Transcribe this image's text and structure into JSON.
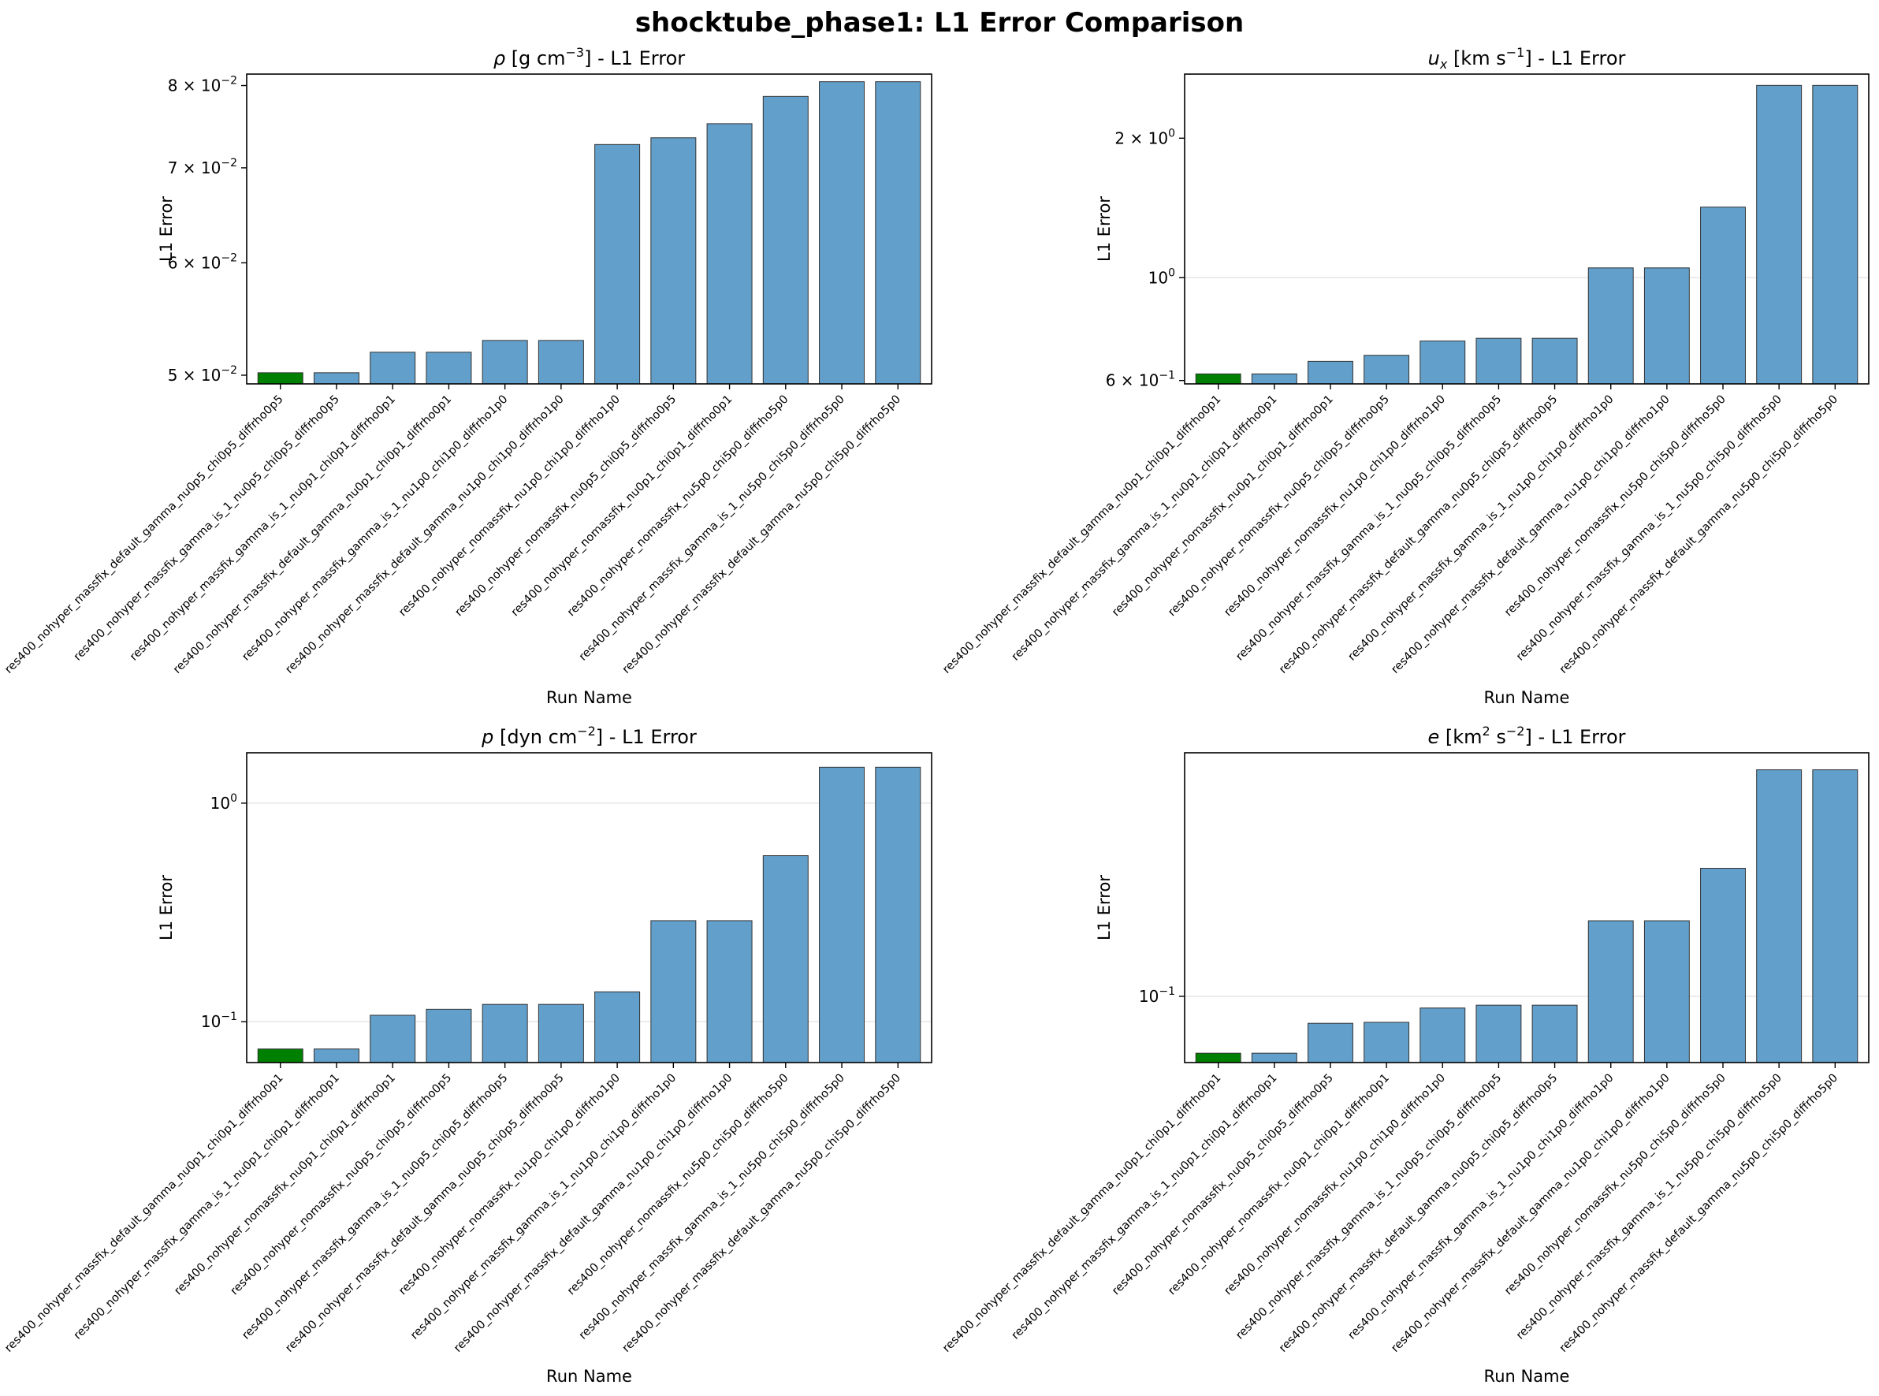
{
  "figure": {
    "title": "shocktube_phase1: L1 Error Comparison"
  },
  "colors": {
    "best": "#008000",
    "bar": "#629fca",
    "edge": "#333333",
    "grid": "#e6e6e6"
  },
  "chart_data": [
    {
      "type": "bar",
      "title_parts": [
        "ρ",
        " [g cm",
        "−3",
        "] - L1 Error"
      ],
      "xlabel": "Run Name",
      "ylabel": "L1 Error",
      "yscale": "log",
      "ylim": [
        0.0493,
        0.0815
      ],
      "yticks": [
        {
          "value": 0.05,
          "mantissa": "5",
          "exp": "−2"
        },
        {
          "value": 0.06,
          "mantissa": "6",
          "exp": "−2"
        },
        {
          "value": 0.07,
          "mantissa": "7",
          "exp": "−2"
        },
        {
          "value": 0.08,
          "mantissa": "8",
          "exp": "−2"
        }
      ],
      "grid_lines": [],
      "highlight_index": 0,
      "categories": [
        "res400_nohyper_massfix_default_gamma_nu0p5_chi0p5_diffrho0p5",
        "res400_nohyper_massfix_gamma_is_1_nu0p5_chi0p5_diffrho0p5",
        "res400_nohyper_massfix_gamma_is_1_nu0p1_chi0p1_diffrho0p1",
        "res400_nohyper_massfix_default_gamma_nu0p1_chi0p1_diffrho0p1",
        "res400_nohyper_massfix_gamma_is_1_nu1p0_chi1p0_diffrho1p0",
        "res400_nohyper_massfix_default_gamma_nu1p0_chi1p0_diffrho1p0",
        "res400_nohyper_nomassfix_nu1p0_chi1p0_diffrho1p0",
        "res400_nohyper_nomassfix_nu0p5_chi0p5_diffrho0p5",
        "res400_nohyper_nomassfix_nu0p1_chi0p1_diffrho0p1",
        "res400_nohyper_nomassfix_nu5p0_chi5p0_diffrho5p0",
        "res400_nohyper_massfix_gamma_is_1_nu5p0_chi5p0_diffrho5p0",
        "res400_nohyper_massfix_default_gamma_nu5p0_chi5p0_diffrho5p0"
      ],
      "values": [
        0.0502,
        0.0502,
        0.0519,
        0.0519,
        0.0529,
        0.0529,
        0.0727,
        0.0735,
        0.0752,
        0.0786,
        0.0805,
        0.0805
      ]
    },
    {
      "type": "bar",
      "title_parts": [
        "u",
        "x",
        " [km s",
        "−1",
        "] - L1 Error"
      ],
      "xlabel": "Run Name",
      "ylabel": "L1 Error",
      "yscale": "log",
      "ylim": [
        0.59,
        2.75
      ],
      "yticks": [
        {
          "value": 0.6,
          "mantissa": "6",
          "exp": "−1"
        },
        {
          "value": 1.0,
          "mantissa": "",
          "exp": "0"
        },
        {
          "value": 2.0,
          "mantissa": "2",
          "exp": "0"
        }
      ],
      "grid_lines": [
        1.0
      ],
      "highlight_index": 0,
      "categories": [
        "res400_nohyper_massfix_default_gamma_nu0p1_chi0p1_diffrho0p1",
        "res400_nohyper_massfix_gamma_is_1_nu0p1_chi0p1_diffrho0p1",
        "res400_nohyper_nomassfix_nu0p1_chi0p1_diffrho0p1",
        "res400_nohyper_nomassfix_nu0p5_chi0p5_diffrho0p5",
        "res400_nohyper_nomassfix_nu1p0_chi1p0_diffrho1p0",
        "res400_nohyper_massfix_gamma_is_1_nu0p5_chi0p5_diffrho0p5",
        "res400_nohyper_massfix_default_gamma_nu0p5_chi0p5_diffrho0p5",
        "res400_nohyper_massfix_gamma_is_1_nu1p0_chi1p0_diffrho1p0",
        "res400_nohyper_massfix_default_gamma_nu1p0_chi1p0_diffrho1p0",
        "res400_nohyper_nomassfix_nu5p0_chi5p0_diffrho5p0",
        "res400_nohyper_massfix_gamma_is_1_nu5p0_chi5p0_diffrho5p0",
        "res400_nohyper_massfix_default_gamma_nu5p0_chi5p0_diffrho5p0"
      ],
      "values": [
        0.62,
        0.62,
        0.66,
        0.68,
        0.73,
        0.74,
        0.74,
        1.05,
        1.05,
        1.42,
        2.6,
        2.6
      ]
    },
    {
      "type": "bar",
      "title_parts": [
        "p",
        " [dyn cm",
        "−2",
        "] - L1 Error"
      ],
      "xlabel": "Run Name",
      "ylabel": "L1 Error",
      "yscale": "log",
      "ylim": [
        0.065,
        1.7
      ],
      "yticks": [
        {
          "value": 0.1,
          "mantissa": "",
          "exp": "−1"
        },
        {
          "value": 1.0,
          "mantissa": "",
          "exp": "0"
        }
      ],
      "grid_lines": [
        0.1,
        1.0
      ],
      "highlight_index": 0,
      "categories": [
        "res400_nohyper_massfix_default_gamma_nu0p1_chi0p1_diffrho0p1",
        "res400_nohyper_massfix_gamma_is_1_nu0p1_chi0p1_diffrho0p1",
        "res400_nohyper_nomassfix_nu0p1_chi0p1_diffrho0p1",
        "res400_nohyper_nomassfix_nu0p5_chi0p5_diffrho0p5",
        "res400_nohyper_massfix_gamma_is_1_nu0p5_chi0p5_diffrho0p5",
        "res400_nohyper_massfix_default_gamma_nu0p5_chi0p5_diffrho0p5",
        "res400_nohyper_nomassfix_nu1p0_chi1p0_diffrho1p0",
        "res400_nohyper_massfix_gamma_is_1_nu1p0_chi1p0_diffrho1p0",
        "res400_nohyper_massfix_default_gamma_nu1p0_chi1p0_diffrho1p0",
        "res400_nohyper_nomassfix_nu5p0_chi5p0_diffrho5p0",
        "res400_nohyper_massfix_gamma_is_1_nu5p0_chi5p0_diffrho5p0",
        "res400_nohyper_massfix_default_gamma_nu5p0_chi5p0_diffrho5p0"
      ],
      "values": [
        0.075,
        0.075,
        0.107,
        0.114,
        0.12,
        0.12,
        0.137,
        0.29,
        0.29,
        0.575,
        1.46,
        1.46
      ]
    },
    {
      "type": "bar",
      "title_parts": [
        "e",
        " [km",
        "2",
        " s",
        "−2",
        "] - L1 Error"
      ],
      "xlabel": "Run Name",
      "ylabel": "L1 Error",
      "yscale": "log",
      "ylim": [
        0.0557,
        0.86
      ],
      "yticks": [
        {
          "value": 0.1,
          "mantissa": "",
          "exp": "−1"
        }
      ],
      "grid_lines": [
        0.1
      ],
      "highlight_index": 0,
      "categories": [
        "res400_nohyper_massfix_default_gamma_nu0p1_chi0p1_diffrho0p1",
        "res400_nohyper_massfix_gamma_is_1_nu0p1_chi0p1_diffrho0p1",
        "res400_nohyper_nomassfix_nu0p5_chi0p5_diffrho0p5",
        "res400_nohyper_nomassfix_nu0p1_chi0p1_diffrho0p1",
        "res400_nohyper_nomassfix_nu1p0_chi1p0_diffrho1p0",
        "res400_nohyper_massfix_gamma_is_1_nu0p5_chi0p5_diffrho0p5",
        "res400_nohyper_massfix_default_gamma_nu0p5_chi0p5_diffrho0p5",
        "res400_nohyper_massfix_gamma_is_1_nu1p0_chi1p0_diffrho1p0",
        "res400_nohyper_massfix_default_gamma_nu1p0_chi1p0_diffrho1p0",
        "res400_nohyper_nomassfix_nu5p0_chi5p0_diffrho5p0",
        "res400_nohyper_massfix_gamma_is_1_nu5p0_chi5p0_diffrho5p0",
        "res400_nohyper_massfix_default_gamma_nu5p0_chi5p0_diffrho5p0"
      ],
      "values": [
        0.0605,
        0.0605,
        0.0788,
        0.0795,
        0.0902,
        0.0925,
        0.0925,
        0.195,
        0.195,
        0.31,
        0.74,
        0.74
      ]
    }
  ]
}
